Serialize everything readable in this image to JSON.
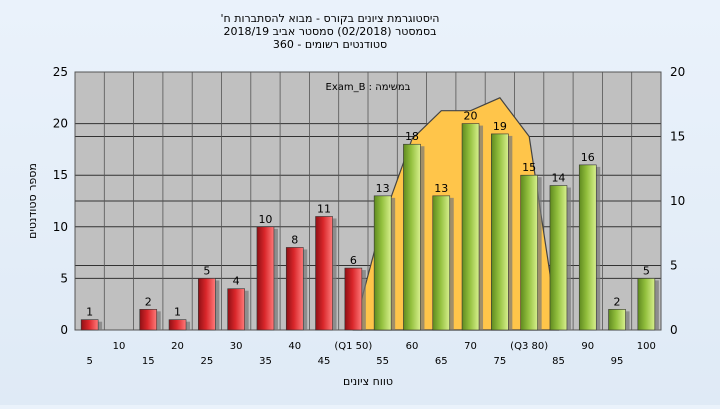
{
  "chart_data": {
    "type": "bar",
    "title_lines": [
      "'היסטוגרמת ציונים בקורס - מבוא להסתברות ח",
      "בסמסטר  (02/2018)  סמסטר אביב 2018/19",
      "360 - סטודנטים רשומים"
    ],
    "annotation": "Exam_B : במשימה",
    "xlabel": "טווח ציונים",
    "ylabel": "מספר סטודנטים",
    "ylim": [
      0,
      25
    ],
    "yticks": [
      0,
      5,
      10,
      15,
      20,
      25
    ],
    "y2lim": [
      0,
      20
    ],
    "y2ticks": [
      0,
      5,
      10,
      15,
      20
    ],
    "grid": true,
    "categories": [
      "5",
      "10",
      "15",
      "20",
      "25",
      "30",
      "35",
      "40",
      "45",
      "(Q1 50)",
      "55",
      "60",
      "65",
      "70",
      "75",
      "(Q3 80)",
      "85",
      "90",
      "95",
      "100"
    ],
    "values": [
      1,
      0,
      2,
      1,
      5,
      4,
      10,
      8,
      11,
      6,
      13,
      18,
      13,
      20,
      19,
      15,
      14,
      16,
      2,
      5
    ],
    "value_labels": [
      "1",
      "",
      "2",
      "1",
      "5",
      "4",
      "10",
      "8",
      "11",
      "6",
      "13",
      "18",
      "13",
      "20",
      "19",
      "15",
      "14",
      "16",
      "2",
      "5"
    ],
    "bar_colors": [
      "red",
      "red",
      "red",
      "red",
      "red",
      "red",
      "red",
      "red",
      "red",
      "red",
      "green",
      "green",
      "green",
      "green",
      "green",
      "green",
      "green",
      "green",
      "green",
      "green"
    ],
    "area": {
      "x_from": "(Q1 50)",
      "x_to": "(Q3 80)",
      "peak_x": "75",
      "description_values_y2": [
        0,
        8.5,
        14.8,
        17,
        17,
        18,
        15,
        0
      ]
    },
    "colors": {
      "red_bar": "#d9262a",
      "green_bar": "#93c03e",
      "area_fill": "#ffc54a",
      "plot_bg": "#c0c0c0",
      "page_bg": "#e3edf8"
    }
  }
}
